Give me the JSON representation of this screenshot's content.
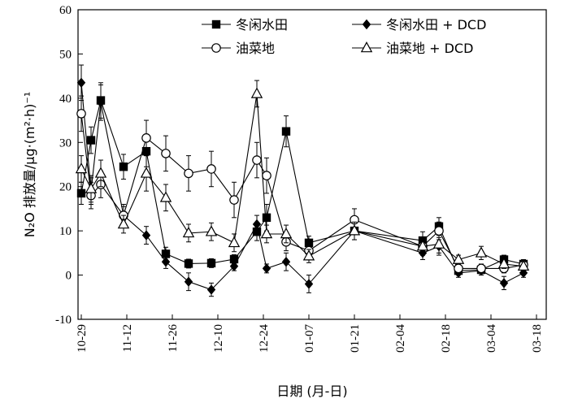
{
  "chart_data": {
    "type": "line",
    "xlabel": "日期 (月-日)",
    "ylabel": "N₂O 排放量/μg·(m²·h)⁻¹",
    "ylim": [
      -10,
      60
    ],
    "yticks": [
      -10,
      0,
      10,
      20,
      30,
      40,
      50,
      60
    ],
    "xlim": [
      "10-28",
      "03-21"
    ],
    "xticks": [
      "10-29",
      "11-12",
      "11-26",
      "12-10",
      "12-24",
      "01-07",
      "01-21",
      "02-04",
      "02-18",
      "03-04",
      "03-18"
    ],
    "legend_position": "top-right",
    "grid": false,
    "series": [
      {
        "name": "冬闲水田",
        "marker": "filled-square",
        "points": [
          {
            "x": "10-29",
            "y": 18.5,
            "err": 2.5
          },
          {
            "x": "11-01",
            "y": 30.5,
            "err": 3.0
          },
          {
            "x": "11-04",
            "y": 39.5,
            "err": 4.0
          },
          {
            "x": "11-11",
            "y": 24.5,
            "err": 2.8
          },
          {
            "x": "11-18",
            "y": 28.0,
            "err": 3.5
          },
          {
            "x": "11-24",
            "y": 4.8,
            "err": 1.5
          },
          {
            "x": "12-01",
            "y": 2.6,
            "err": 1.0
          },
          {
            "x": "12-08",
            "y": 2.7,
            "err": 1.0
          },
          {
            "x": "12-15",
            "y": 3.6,
            "err": 1.0
          },
          {
            "x": "12-22",
            "y": 9.8,
            "err": 2.0
          },
          {
            "x": "12-25",
            "y": 13.0,
            "err": 3.0
          },
          {
            "x": "12-31",
            "y": 32.5,
            "err": 3.5
          },
          {
            "x": "01-07",
            "y": 7.3,
            "err": 1.5
          },
          {
            "x": "01-21",
            "y": 10.0,
            "err": 2.0
          },
          {
            "x": "02-11",
            "y": 7.8,
            "err": 2.0
          },
          {
            "x": "02-16",
            "y": 11.0,
            "err": 2.0
          },
          {
            "x": "02-22",
            "y": 1.0,
            "err": 1.0
          },
          {
            "x": "03-01",
            "y": 1.2,
            "err": 0.8
          },
          {
            "x": "03-08",
            "y": 3.5,
            "err": 1.0
          },
          {
            "x": "03-14",
            "y": 2.5,
            "err": 1.0
          }
        ]
      },
      {
        "name": "冬闲水田 + DCD",
        "marker": "filled-diamond",
        "points": [
          {
            "x": "10-29",
            "y": 43.5,
            "err": 4.0
          },
          {
            "x": "11-01",
            "y": 19.0,
            "err": 3.0
          },
          {
            "x": "11-04",
            "y": 39.0,
            "err": 4.0
          },
          {
            "x": "11-11",
            "y": 13.5,
            "err": 2.0
          },
          {
            "x": "11-18",
            "y": 9.0,
            "err": 2.0
          },
          {
            "x": "11-24",
            "y": 3.0,
            "err": 1.5
          },
          {
            "x": "12-01",
            "y": -1.5,
            "err": 2.0
          },
          {
            "x": "12-08",
            "y": -3.3,
            "err": 1.5
          },
          {
            "x": "12-15",
            "y": 2.0,
            "err": 1.0
          },
          {
            "x": "12-22",
            "y": 11.5,
            "err": 2.0
          },
          {
            "x": "12-25",
            "y": 1.5,
            "err": 1.0
          },
          {
            "x": "12-31",
            "y": 3.0,
            "err": 2.0
          },
          {
            "x": "01-07",
            "y": -2.0,
            "err": 2.0
          },
          {
            "x": "01-21",
            "y": 10.0,
            "err": 2.0
          },
          {
            "x": "02-11",
            "y": 5.0,
            "err": 1.5
          },
          {
            "x": "02-16",
            "y": 6.5,
            "err": 2.0
          },
          {
            "x": "02-22",
            "y": 0.5,
            "err": 1.0
          },
          {
            "x": "03-01",
            "y": 1.0,
            "err": 1.0
          },
          {
            "x": "03-08",
            "y": -1.8,
            "err": 1.5
          },
          {
            "x": "03-14",
            "y": 0.5,
            "err": 1.0
          }
        ]
      },
      {
        "name": "油菜地",
        "marker": "open-circle",
        "points": [
          {
            "x": "10-29",
            "y": 36.5,
            "err": 4.0
          },
          {
            "x": "11-01",
            "y": 18.0,
            "err": 3.0
          },
          {
            "x": "11-04",
            "y": 20.5,
            "err": 3.0
          },
          {
            "x": "11-11",
            "y": 13.5,
            "err": 2.5
          },
          {
            "x": "11-18",
            "y": 31.0,
            "err": 4.0
          },
          {
            "x": "11-24",
            "y": 27.5,
            "err": 4.0
          },
          {
            "x": "12-01",
            "y": 23.0,
            "err": 4.0
          },
          {
            "x": "12-08",
            "y": 24.0,
            "err": 4.0
          },
          {
            "x": "12-15",
            "y": 17.0,
            "err": 4.0
          },
          {
            "x": "12-22",
            "y": 26.0,
            "err": 4.0
          },
          {
            "x": "12-25",
            "y": 22.5,
            "err": 4.0
          },
          {
            "x": "12-31",
            "y": 7.5,
            "err": 2.0
          },
          {
            "x": "01-07",
            "y": 5.5,
            "err": 1.5
          },
          {
            "x": "01-21",
            "y": 12.5,
            "err": 2.5
          },
          {
            "x": "02-11",
            "y": 6.5,
            "err": 2.0
          },
          {
            "x": "02-16",
            "y": 10.0,
            "err": 2.0
          },
          {
            "x": "02-22",
            "y": 1.5,
            "err": 1.0
          },
          {
            "x": "03-01",
            "y": 1.5,
            "err": 1.0
          },
          {
            "x": "03-08",
            "y": 1.5,
            "err": 1.0
          },
          {
            "x": "03-14",
            "y": 2.3,
            "err": 1.0
          }
        ]
      },
      {
        "name": "油菜地 + DCD",
        "marker": "open-triangle",
        "points": [
          {
            "x": "10-29",
            "y": 24.0,
            "err": 3.0
          },
          {
            "x": "11-01",
            "y": 19.5,
            "err": 3.0
          },
          {
            "x": "11-04",
            "y": 23.0,
            "err": 3.0
          },
          {
            "x": "11-11",
            "y": 11.5,
            "err": 2.0
          },
          {
            "x": "11-18",
            "y": 23.0,
            "err": 4.0
          },
          {
            "x": "11-24",
            "y": 17.5,
            "err": 3.0
          },
          {
            "x": "12-01",
            "y": 9.5,
            "err": 2.0
          },
          {
            "x": "12-08",
            "y": 9.8,
            "err": 2.0
          },
          {
            "x": "12-15",
            "y": 7.3,
            "err": 2.0
          },
          {
            "x": "12-22",
            "y": 41.0,
            "err": 3.0
          },
          {
            "x": "12-25",
            "y": 9.3,
            "err": 2.0
          },
          {
            "x": "12-31",
            "y": 9.3,
            "err": 2.0
          },
          {
            "x": "01-07",
            "y": 4.3,
            "err": 1.5
          },
          {
            "x": "01-21",
            "y": 10.0,
            "err": 2.0
          },
          {
            "x": "02-11",
            "y": 6.5,
            "err": 2.0
          },
          {
            "x": "02-16",
            "y": 7.0,
            "err": 2.0
          },
          {
            "x": "02-22",
            "y": 3.5,
            "err": 1.0
          },
          {
            "x": "03-01",
            "y": 5.0,
            "err": 1.5
          },
          {
            "x": "03-08",
            "y": 2.5,
            "err": 1.0
          },
          {
            "x": "03-14",
            "y": 2.0,
            "err": 1.0
          }
        ]
      }
    ]
  }
}
